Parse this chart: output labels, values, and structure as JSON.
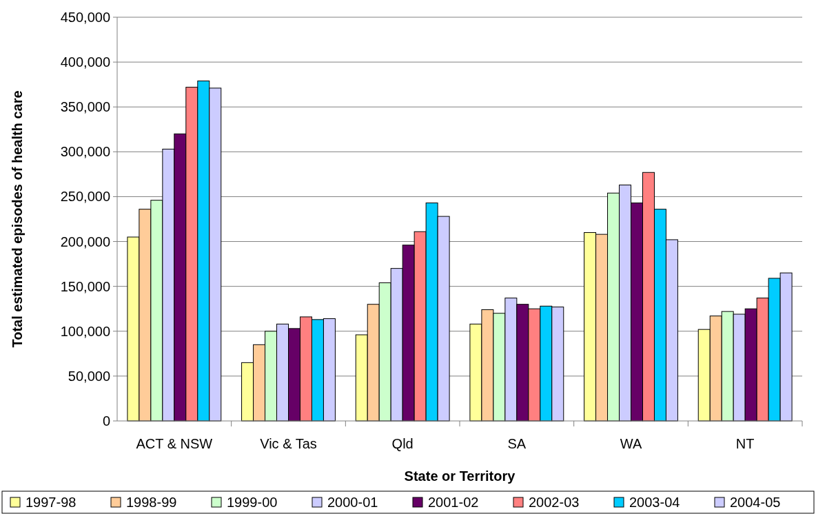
{
  "chart_data": {
    "type": "bar",
    "xlabel": "State or Territory",
    "ylabel": "Total estimated episodes of health care",
    "categories": [
      "ACT & NSW",
      "Vic & Tas",
      "Qld",
      "SA",
      "WA",
      "NT"
    ],
    "series": [
      {
        "name": "1997-98",
        "color": "#ffff99",
        "values": [
          205000,
          65000,
          96000,
          108000,
          210000,
          102000
        ]
      },
      {
        "name": "1998-99",
        "color": "#ffcc99",
        "values": [
          236000,
          85000,
          130000,
          124000,
          208000,
          117000
        ]
      },
      {
        "name": "1999-00",
        "color": "#ccffcc",
        "values": [
          246000,
          100000,
          154000,
          120000,
          254000,
          122000
        ]
      },
      {
        "name": "2000-01",
        "color": "#ccccff",
        "values": [
          303000,
          108000,
          170000,
          137000,
          263000,
          119000
        ]
      },
      {
        "name": "2001-02",
        "color": "#660066",
        "values": [
          320000,
          103000,
          196000,
          130000,
          243000,
          125000
        ]
      },
      {
        "name": "2002-03",
        "color": "#ff8080",
        "values": [
          372000,
          116000,
          211000,
          125000,
          277000,
          137000
        ]
      },
      {
        "name": "2003-04",
        "color": "#00ccff",
        "values": [
          379000,
          113000,
          243000,
          128000,
          236000,
          159000
        ]
      },
      {
        "name": "2004-05",
        "color": "#ccccff",
        "values": [
          371000,
          114000,
          228000,
          127000,
          202000,
          165000
        ]
      }
    ],
    "ylim": [
      0,
      450000
    ],
    "yticks": [
      0,
      {
        "value": 50000,
        "label": "50,000"
      },
      {
        "value": 100000,
        "label": "100,000"
      },
      {
        "value": 150000,
        "label": "150,000"
      },
      {
        "value": 200000,
        "label": "200,000"
      },
      {
        "value": 250000,
        "label": "250,000"
      },
      {
        "value": 300000,
        "label": "300,000"
      },
      {
        "value": 350000,
        "label": "350,000"
      },
      {
        "value": 400000,
        "label": "400,000"
      },
      {
        "value": 450000,
        "label": "450,000"
      }
    ],
    "grid": "y",
    "legend": "bottom"
  }
}
